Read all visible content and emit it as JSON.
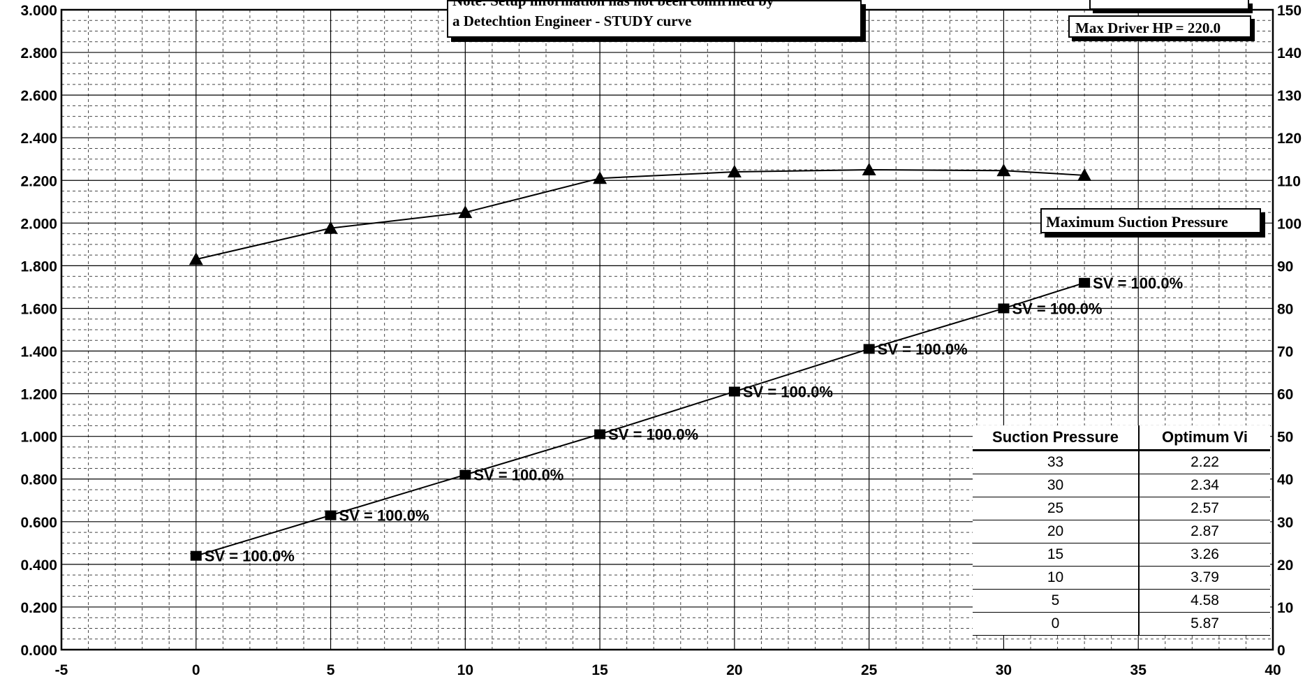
{
  "chart_data": {
    "type": "line",
    "xlim": [
      -5,
      40
    ],
    "ylim_left": [
      0,
      3
    ],
    "ylim_right": [
      0,
      150
    ],
    "x_ticks": [
      -5,
      0,
      5,
      10,
      15,
      20,
      25,
      30,
      35,
      40
    ],
    "x_tick_labels": [
      "-5",
      "0",
      "5",
      "10",
      "15",
      "20",
      "25",
      "30",
      "35",
      "40"
    ],
    "y_left_ticks": [
      0,
      0.2,
      0.4,
      0.6,
      0.8,
      1.0,
      1.2,
      1.4,
      1.6,
      1.8,
      2.0,
      2.2,
      2.4,
      2.6,
      2.8,
      3.0
    ],
    "y_left_tick_labels": [
      "0.000",
      "0.200",
      "0.400",
      "0.600",
      "0.800",
      "1.000",
      "1.200",
      "1.400",
      "1.600",
      "1.800",
      "2.000",
      "2.200",
      "2.400",
      "2.600",
      "2.800",
      "3.000"
    ],
    "y_right_ticks": [
      0,
      10,
      20,
      30,
      40,
      50,
      60,
      70,
      80,
      90,
      100,
      110,
      120,
      130,
      140,
      150
    ],
    "y_right_tick_labels": [
      "0",
      "10",
      "20",
      "30",
      "40",
      "50",
      "60",
      "70",
      "80",
      "90",
      "100",
      "110",
      "120",
      "130",
      "140",
      "150"
    ],
    "grid": true,
    "series": [
      {
        "marker": "triangle",
        "axis": "right",
        "x": [
          0,
          5,
          10,
          15,
          20,
          25,
          30,
          33
        ],
        "y": [
          91.5,
          98.8,
          102.5,
          110.5,
          112.0,
          112.5,
          112.3,
          111.2
        ]
      },
      {
        "marker": "square",
        "axis": "left",
        "x": [
          0,
          5,
          10,
          15,
          20,
          25,
          30,
          33
        ],
        "y": [
          0.44,
          0.63,
          0.82,
          1.01,
          1.21,
          1.41,
          1.6,
          1.72
        ],
        "point_labels": [
          "SV = 100.0%",
          "SV = 100.0%",
          "SV = 100.0%",
          "SV = 100.0%",
          "SV = 100.0%",
          "SV = 100.0%",
          "SV = 100.0%",
          "SV = 100.0%"
        ]
      }
    ]
  },
  "note": {
    "line1": "Note:  Setup information has not been confirmed by",
    "line2": "a Detechtion Engineer - STUDY curve"
  },
  "max_driver_hp": "Max Driver HP = 220.0",
  "max_suction_pressure": "Maximum Suction Pressure",
  "table": {
    "headers": [
      "Suction Pressure",
      "Optimum Vi"
    ],
    "rows": [
      [
        "33",
        "2.22"
      ],
      [
        "30",
        "2.34"
      ],
      [
        "25",
        "2.57"
      ],
      [
        "20",
        "2.87"
      ],
      [
        "15",
        "3.26"
      ],
      [
        "10",
        "3.79"
      ],
      [
        "5",
        "4.58"
      ],
      [
        "0",
        "5.87"
      ]
    ]
  }
}
